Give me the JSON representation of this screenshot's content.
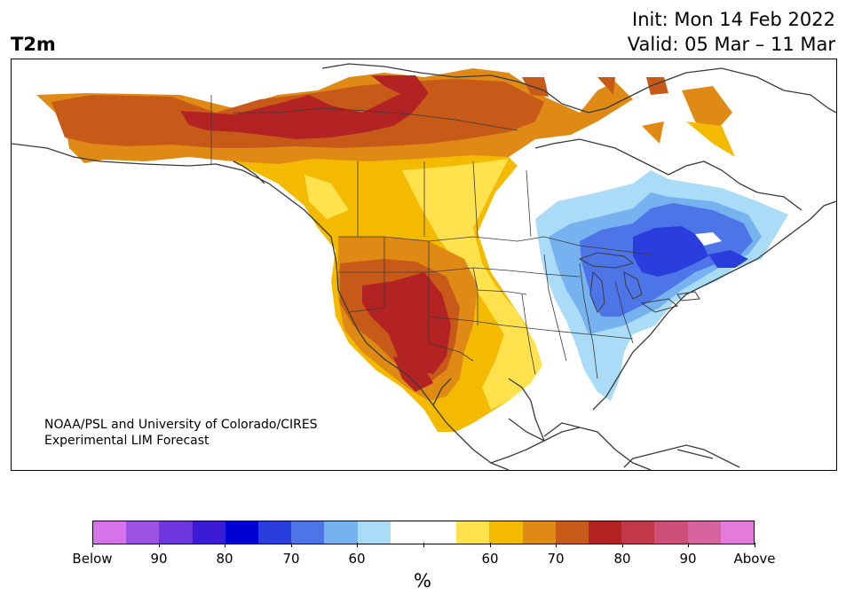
{
  "title": {
    "variable": "T2m",
    "kind": "Probability",
    "init": "Init: Mon 14 Feb 2022",
    "valid": "Valid: 05 Mar – 11 Mar"
  },
  "credit": {
    "line1": "NOAA/PSL and University of Colorado/CIRES",
    "line2": "Experimental LIM Forecast"
  },
  "colorbar": {
    "unit": "%",
    "colors": [
      "#d673e8",
      "#9e52e3",
      "#6e37dd",
      "#3b1bd6",
      "#0000d4",
      "#2a3ddd",
      "#4e75e7",
      "#76b1f0",
      "#aadcf8",
      "#ffffff",
      "#ffe24d",
      "#f3ba00",
      "#de8a14",
      "#c85a19",
      "#b42323",
      "#c2384a",
      "#ce4f78",
      "#d8649f",
      "#e47bdc"
    ],
    "tick_labels": [
      "Below",
      "90",
      "80",
      "70",
      "60",
      "",
      "60",
      "70",
      "80",
      "90",
      "Above"
    ]
  },
  "map_colors": {
    "land": "#ffffff",
    "coast": "#3a3a3a"
  },
  "regions": [
    {
      "name": "alaska-orange",
      "level": "warm-70",
      "color": "#de8a14"
    },
    {
      "name": "canada-red",
      "level": "warm-80",
      "color": "#b42323"
    },
    {
      "name": "southwest-red",
      "level": "warm-80",
      "color": "#b42323"
    },
    {
      "name": "plains-yellow",
      "level": "warm-60",
      "color": "#ffe24d"
    },
    {
      "name": "east-blue",
      "level": "cold-70",
      "color": "#2a3ddd"
    },
    {
      "name": "east-lightblue",
      "level": "cold-50",
      "color": "#aadcf8"
    }
  ]
}
